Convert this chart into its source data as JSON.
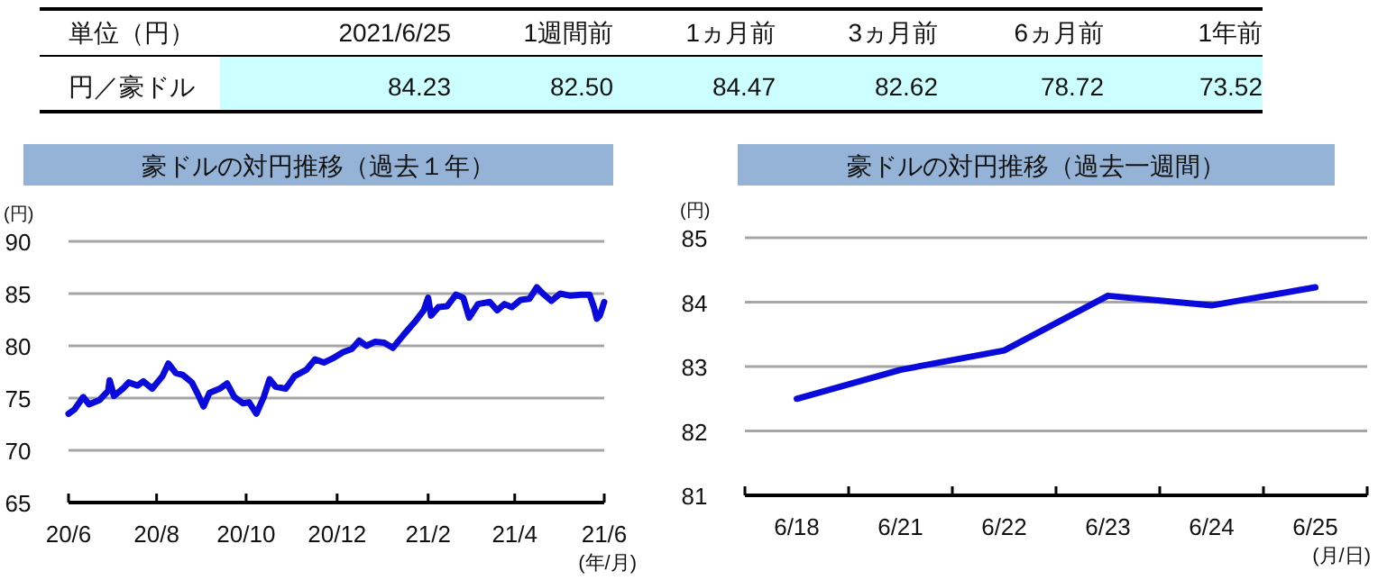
{
  "chart_data": [
    {
      "type": "other",
      "annotations": [
        "単位（円）",
        "2021/6/25",
        "1週間前",
        "1ヵ月前",
        "3ヵ月前",
        "6ヵ月前",
        "1年前",
        "円／豪ドル",
        "84.23",
        "82.50",
        "84.47",
        "82.62",
        "78.72",
        "73.52"
      ]
    },
    {
      "type": "line",
      "title": "豪ドルの対円推移（過去１年）",
      "ylabel": "(円)",
      "xlabel": "(年/月)",
      "x": [
        "2020-06-25",
        "2020-06-29",
        "2020-07-05",
        "2020-07-09",
        "2020-07-16",
        "2020-07-22",
        "2020-07-23",
        "2020-07-26",
        "2020-08-01",
        "2020-08-05",
        "2020-08-11",
        "2020-08-15",
        "2020-08-21",
        "2020-08-28",
        "2020-09-01",
        "2020-09-06",
        "2020-09-11",
        "2020-09-17",
        "2020-09-21",
        "2020-09-25",
        "2020-09-29",
        "2020-10-06",
        "2020-10-11",
        "2020-10-16",
        "2020-10-22",
        "2020-10-26",
        "2020-10-31",
        "2020-11-05",
        "2020-11-09",
        "2020-11-13",
        "2020-11-20",
        "2020-11-26",
        "2020-12-04",
        "2020-12-10",
        "2020-12-16",
        "2020-12-22",
        "2020-12-29",
        "2021-01-04",
        "2021-01-09",
        "2021-01-14",
        "2021-01-20",
        "2021-01-26",
        "2021-02-01",
        "2021-02-08",
        "2021-02-16",
        "2021-02-22",
        "2021-02-25",
        "2021-02-27",
        "2021-03-04",
        "2021-03-10",
        "2021-03-16",
        "2021-03-21",
        "2021-03-25",
        "2021-03-31",
        "2021-04-08",
        "2021-04-13",
        "2021-04-18",
        "2021-04-23",
        "2021-04-29",
        "2021-05-05",
        "2021-05-10",
        "2021-05-15",
        "2021-05-20",
        "2021-05-26",
        "2021-06-02",
        "2021-06-09",
        "2021-06-15",
        "2021-06-18",
        "2021-06-20",
        "2021-06-22",
        "2021-06-25"
      ],
      "series": [
        {
          "color": "#0a0adc",
          "values": [
            73.5,
            73.9,
            75.1,
            74.4,
            74.8,
            75.7,
            76.7,
            75.2,
            75.9,
            76.5,
            76.2,
            76.6,
            75.9,
            77.1,
            78.3,
            77.4,
            77.2,
            76.5,
            75.4,
            74.2,
            75.5,
            75.9,
            76.4,
            75.1,
            74.5,
            74.6,
            73.5,
            75.1,
            76.8,
            76.1,
            75.9,
            77.1,
            77.7,
            78.7,
            78.4,
            78.8,
            79.4,
            79.7,
            80.5,
            80.0,
            80.4,
            80.3,
            79.8,
            81.0,
            82.3,
            83.4,
            84.6,
            82.9,
            83.7,
            83.8,
            84.9,
            84.6,
            82.7,
            84.0,
            84.2,
            83.4,
            84.0,
            83.7,
            84.4,
            84.5,
            85.6,
            84.9,
            84.3,
            85.0,
            84.8,
            84.9,
            84.9,
            83.7,
            82.6,
            82.9,
            84.2
          ]
        }
      ],
      "xlim": [
        "2020-06-25",
        "2021-06-25"
      ],
      "xticks": [
        {
          "value": "2020-06-25",
          "label": "20/6"
        },
        {
          "value": "2020-08-24",
          "label": "20/8"
        },
        {
          "value": "2020-10-24",
          "label": "20/10"
        },
        {
          "value": "2020-12-25",
          "label": "20/12"
        },
        {
          "value": "2021-02-25",
          "label": "21/2"
        },
        {
          "value": "2021-04-25",
          "label": "21/4"
        },
        {
          "value": "2021-06-25",
          "label": "21/6"
        }
      ],
      "ylim": [
        65,
        90
      ],
      "yticks": [
        65,
        70,
        75,
        80,
        85,
        90
      ],
      "grid": "y"
    },
    {
      "type": "line",
      "title": "豪ドルの対円推移（過去一週間）",
      "ylabel": "(円)",
      "xlabel": "(月/日)",
      "categories": [
        "6/18",
        "6/21",
        "6/22",
        "6/23",
        "6/24",
        "6/25"
      ],
      "series": [
        {
          "color": "#0a0adc",
          "values": [
            82.5,
            82.95,
            83.25,
            84.1,
            83.95,
            84.23
          ]
        }
      ],
      "ylim": [
        81,
        85
      ],
      "yticks": [
        81,
        82,
        83,
        84,
        85
      ],
      "grid": "y"
    }
  ]
}
